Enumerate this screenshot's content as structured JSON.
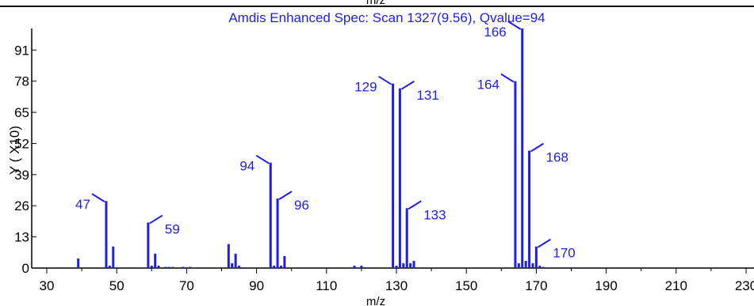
{
  "chart_data": {
    "type": "bar",
    "title": "Amdis Enhanced Spec: Scan 1327(9.56), Qvalue=94",
    "xlabel": "m/z",
    "ylabel": "Y ( X10)",
    "top_axis_label": "m/z",
    "xlim": [
      30,
      232
    ],
    "ylim": [
      0,
      100
    ],
    "x_ticks": [
      30,
      50,
      70,
      90,
      110,
      130,
      150,
      170,
      190,
      210,
      230
    ],
    "y_ticks": [
      0,
      13,
      26,
      39,
      52,
      65,
      78,
      91
    ],
    "color": "#1f1fe0",
    "peaks": [
      {
        "x": 39,
        "y": 4
      },
      {
        "x": 47,
        "y": 28
      },
      {
        "x": 48,
        "y": 1
      },
      {
        "x": 49,
        "y": 9
      },
      {
        "x": 59,
        "y": 19
      },
      {
        "x": 60,
        "y": 1
      },
      {
        "x": 61,
        "y": 6
      },
      {
        "x": 62,
        "y": 1
      },
      {
        "x": 64,
        "y": 0.5
      },
      {
        "x": 65,
        "y": 0.5
      },
      {
        "x": 66,
        "y": 0.5
      },
      {
        "x": 69,
        "y": 0.5
      },
      {
        "x": 71,
        "y": 0.5
      },
      {
        "x": 82,
        "y": 10
      },
      {
        "x": 83,
        "y": 2
      },
      {
        "x": 84,
        "y": 6
      },
      {
        "x": 85,
        "y": 1
      },
      {
        "x": 94,
        "y": 44
      },
      {
        "x": 95,
        "y": 1
      },
      {
        "x": 96,
        "y": 29
      },
      {
        "x": 97,
        "y": 1
      },
      {
        "x": 98,
        "y": 5
      },
      {
        "x": 118,
        "y": 1
      },
      {
        "x": 120,
        "y": 1
      },
      {
        "x": 129,
        "y": 77
      },
      {
        "x": 130,
        "y": 1
      },
      {
        "x": 131,
        "y": 75
      },
      {
        "x": 132,
        "y": 2
      },
      {
        "x": 133,
        "y": 25
      },
      {
        "x": 134,
        "y": 2
      },
      {
        "x": 135,
        "y": 3
      },
      {
        "x": 164,
        "y": 78
      },
      {
        "x": 165,
        "y": 2
      },
      {
        "x": 166,
        "y": 100
      },
      {
        "x": 167,
        "y": 3
      },
      {
        "x": 168,
        "y": 49
      },
      {
        "x": 169,
        "y": 2
      },
      {
        "x": 170,
        "y": 9
      },
      {
        "x": 171,
        "y": 1
      },
      {
        "x": 172,
        "y": 0.5
      }
    ],
    "peak_labels": [
      {
        "text": "47",
        "x": 47,
        "side": "left"
      },
      {
        "text": "59",
        "x": 59,
        "side": "right"
      },
      {
        "text": "94",
        "x": 94,
        "side": "left"
      },
      {
        "text": "96",
        "x": 96,
        "side": "right"
      },
      {
        "text": "129",
        "x": 129,
        "side": "left"
      },
      {
        "text": "131",
        "x": 131,
        "side": "right"
      },
      {
        "text": "133",
        "x": 133,
        "side": "right"
      },
      {
        "text": "164",
        "x": 164,
        "side": "left"
      },
      {
        "text": "166",
        "x": 166,
        "side": "left"
      },
      {
        "text": "168",
        "x": 168,
        "side": "right"
      },
      {
        "text": "170",
        "x": 170,
        "side": "right"
      }
    ]
  }
}
